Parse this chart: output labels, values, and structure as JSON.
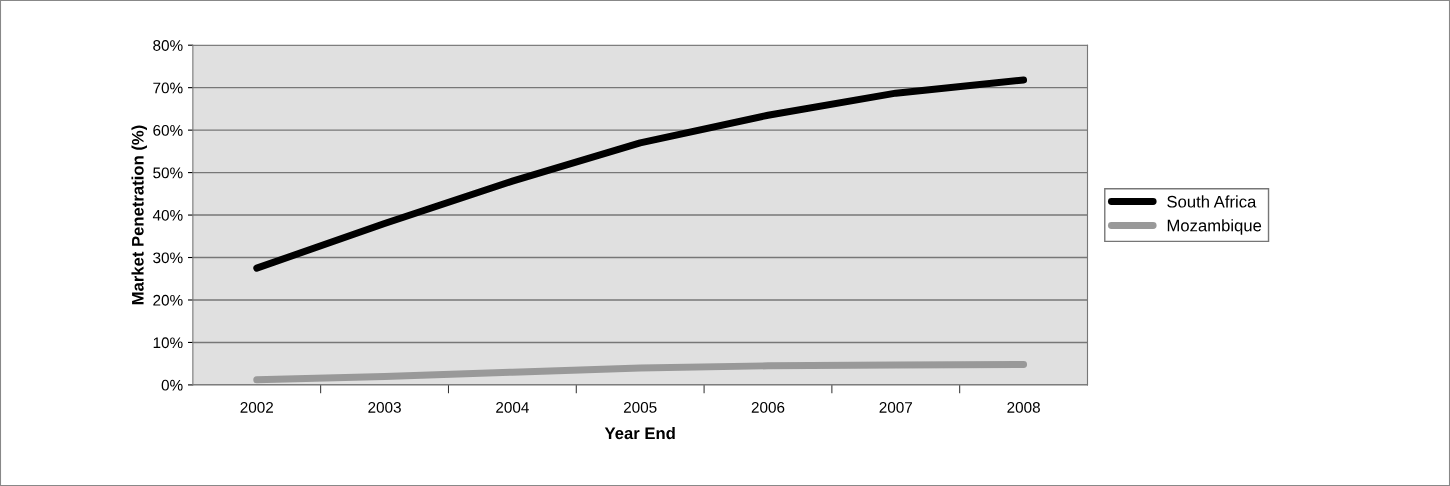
{
  "chart_data": {
    "type": "line",
    "xlabel": "Year End",
    "ylabel": "Market Penetration (%)",
    "categories": [
      "2002",
      "2003",
      "2004",
      "2005",
      "2006",
      "2007",
      "2008"
    ],
    "series": [
      {
        "name": "South Africa",
        "color": "#000000",
        "values": [
          27.5,
          38,
          48,
          57,
          63.5,
          68.7,
          71.8
        ]
      },
      {
        "name": "Mozambique",
        "color": "#999999",
        "values": [
          1.2,
          2,
          3,
          4,
          4.5,
          4.7,
          4.8
        ]
      }
    ],
    "ylim": [
      0,
      80
    ],
    "yticks": [
      {
        "value": 0,
        "label": "0%"
      },
      {
        "value": 10,
        "label": "10%"
      },
      {
        "value": 20,
        "label": "20%"
      },
      {
        "value": 30,
        "label": "30%"
      },
      {
        "value": 40,
        "label": "40%"
      },
      {
        "value": 50,
        "label": "50%"
      },
      {
        "value": 60,
        "label": "60%"
      },
      {
        "value": 70,
        "label": "70%"
      },
      {
        "value": 80,
        "label": "80%"
      }
    ],
    "grid": "y",
    "legend": "right",
    "marker": "none",
    "line_style": "solid"
  }
}
